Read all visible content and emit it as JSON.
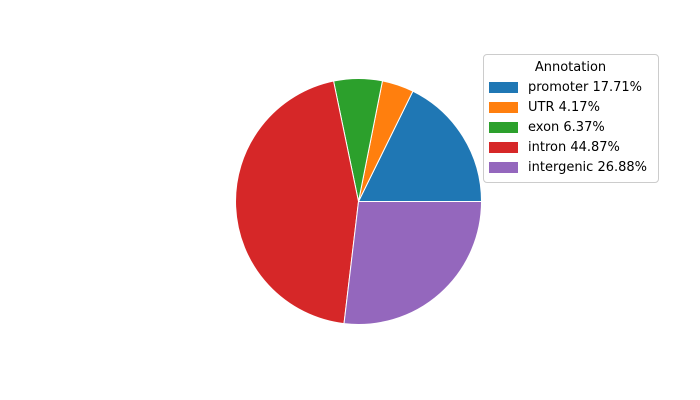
{
  "chart_data": {
    "type": "pie",
    "title": "",
    "legend_title": "Annotation",
    "legend_position": "upper right",
    "start_angle_deg": 0,
    "direction": "counterclockwise",
    "background_color": "#ffffff",
    "legend_border_color": "#cccccc",
    "categories": [
      "promoter",
      "UTR",
      "exon",
      "intron",
      "intergenic"
    ],
    "values": [
      17.71,
      4.17,
      6.37,
      44.87,
      26.88
    ],
    "series": [
      {
        "label": "promoter",
        "value": 17.71,
        "percent_text": "17.71%",
        "legend_label": "promoter 17.71%",
        "color": "#1f77b4"
      },
      {
        "label": "UTR",
        "value": 4.17,
        "percent_text": "4.17%",
        "legend_label": "UTR 4.17%",
        "color": "#ff7f0e"
      },
      {
        "label": "exon",
        "value": 6.37,
        "percent_text": "6.37%",
        "legend_label": "exon 6.37%",
        "color": "#2ca02c"
      },
      {
        "label": "intron",
        "value": 44.87,
        "percent_text": "44.87%",
        "legend_label": "intron 44.87%",
        "color": "#d62728"
      },
      {
        "label": "intergenic",
        "value": 26.88,
        "percent_text": "26.88%",
        "legend_label": "intergenic 26.88%",
        "color": "#9467bd"
      }
    ]
  }
}
